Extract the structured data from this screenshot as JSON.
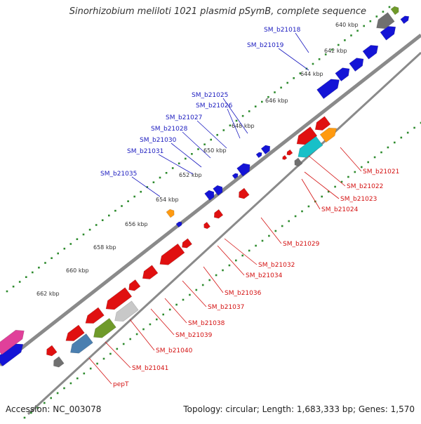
{
  "title": "Sinorhizobium meliloti 1021 plasmid pSymB, complete sequence",
  "footer": {
    "accession": "Accession: NC_003078",
    "summary": "Topology: circular; Length: 1,683,333 bp; Genes: 1,570"
  },
  "ticks": [
    "640 kbp",
    "642 kbp",
    "644 kbp",
    "646 kbp",
    "648 kbp",
    "650 kbp",
    "652 kbp",
    "654 kbp",
    "656 kbp",
    "658 kbp",
    "660 kbp",
    "662 kbp"
  ],
  "forward_labels": [
    "SM_b21018",
    "SM_b21019",
    "SM_b21025",
    "SM_b21026",
    "SM_b21027",
    "SM_b21028",
    "SM_b21030",
    "SM_b21031",
    "SM_b21035"
  ],
  "reverse_labels": [
    "SM_b21021",
    "SM_b21022",
    "SM_b21023",
    "SM_b21024",
    "SM_b21029",
    "SM_b21032",
    "SM_b21034",
    "SM_b21036",
    "SM_b21037",
    "SM_b21038",
    "SM_b21039",
    "SM_b21040",
    "SM_b21041",
    "pepT"
  ],
  "colors": {
    "forward": "#1414d6",
    "reverse": "#e01010",
    "label_forward": "#1a1abf",
    "label_reverse": "#d41010",
    "dots": "#2e8b2e",
    "backbone": "#808080",
    "orange": "#ff9a10",
    "cyan": "#18c0c8",
    "gray": "#707070",
    "lightgray": "#c8c8c8",
    "olive": "#6f9a2a",
    "steelblue": "#4a7fb0",
    "pink": "#e0409a"
  }
}
